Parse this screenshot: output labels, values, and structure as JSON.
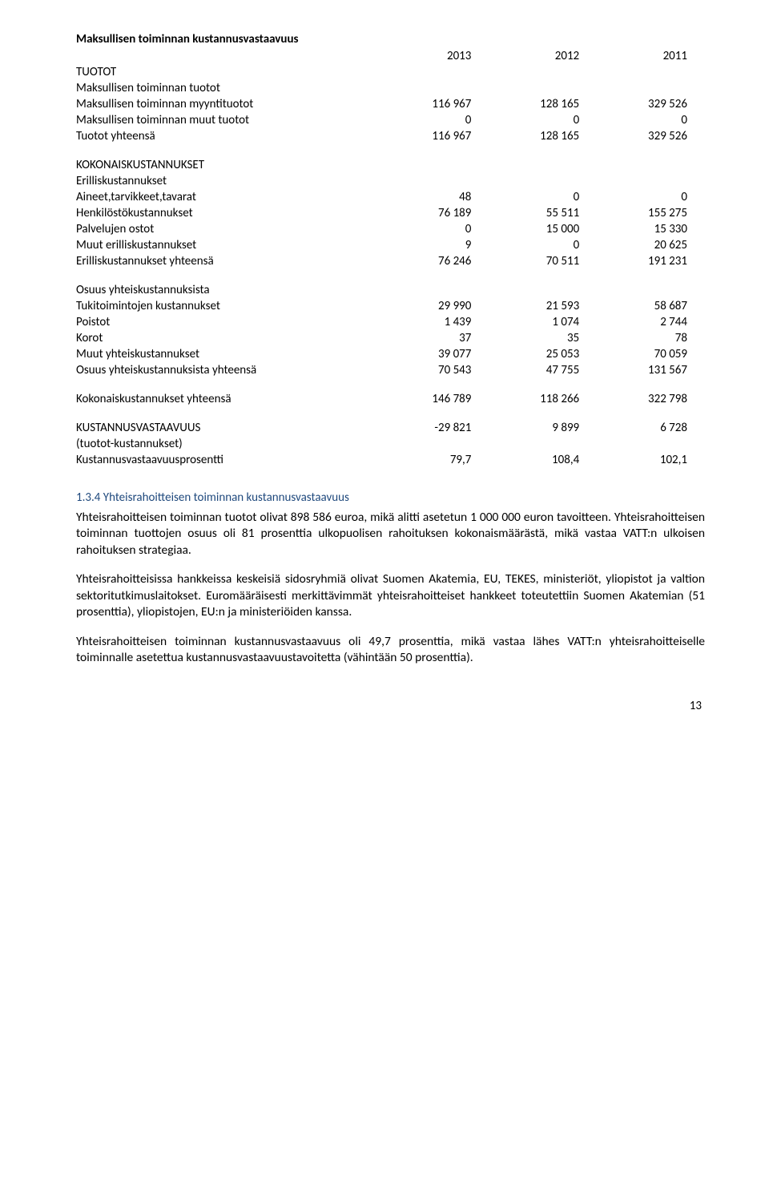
{
  "table": {
    "title": "Maksullisen toiminnan kustannusvastaavuus",
    "years": [
      "2013",
      "2012",
      "2011"
    ],
    "sections": [
      {
        "label": "TUOTOT",
        "rows": [
          {
            "label": "Maksullisen toiminnan tuotot",
            "vals": [
              "",
              "",
              ""
            ]
          },
          {
            "label": "Maksullisen toiminnan myyntituotot",
            "vals": [
              "116 967",
              "128 165",
              "329 526"
            ]
          },
          {
            "label": "Maksullisen toiminnan muut tuotot",
            "vals": [
              "0",
              "0",
              "0"
            ]
          },
          {
            "label": "Tuotot yhteensä",
            "vals": [
              "116 967",
              "128 165",
              "329 526"
            ]
          }
        ]
      },
      {
        "label": "KOKONAISKUSTANNUKSET",
        "rows": [
          {
            "label": "Erilliskustannukset",
            "vals": [
              "",
              "",
              ""
            ]
          },
          {
            "label": "Aineet,tarvikkeet,tavarat",
            "vals": [
              "48",
              "0",
              "0"
            ]
          },
          {
            "label": "Henkilöstökustannukset",
            "vals": [
              "76 189",
              "55 511",
              "155 275"
            ]
          },
          {
            "label": "Palvelujen ostot",
            "vals": [
              "0",
              "15 000",
              "15 330"
            ]
          },
          {
            "label": "Muut erilliskustannukset",
            "vals": [
              "9",
              "0",
              "20 625"
            ]
          },
          {
            "label": "Erilliskustannukset yhteensä",
            "vals": [
              "76 246",
              "70 511",
              "191 231"
            ]
          }
        ]
      },
      {
        "label": "Osuus yhteiskustannuksista",
        "rows": [
          {
            "label": "Tukitoimintojen kustannukset",
            "vals": [
              "29 990",
              "21 593",
              "58 687"
            ]
          },
          {
            "label": "Poistot",
            "vals": [
              "1 439",
              "1 074",
              "2 744"
            ]
          },
          {
            "label": "Korot",
            "vals": [
              "37",
              "35",
              "78"
            ]
          },
          {
            "label": "Muut yhteiskustannukset",
            "vals": [
              "39 077",
              "25 053",
              "70 059"
            ]
          },
          {
            "label": "Osuus yhteiskustannuksista yhteensä",
            "vals": [
              "70 543",
              "47 755",
              "131 567"
            ]
          }
        ]
      },
      {
        "label": "",
        "rows": [
          {
            "label": "Kokonaiskustannukset yhteensä",
            "vals": [
              "146 789",
              "118 266",
              "322 798"
            ]
          }
        ]
      },
      {
        "label": "",
        "rows": [
          {
            "label": "KUSTANNUSVASTAAVUUS",
            "vals": [
              "-29 821",
              "9 899",
              "6 728"
            ]
          },
          {
            "label": "(tuotot-kustannukset)",
            "vals": [
              "",
              "",
              ""
            ]
          },
          {
            "label": "Kustannusvastaavuusprosentti",
            "vals": [
              "79,7",
              "108,4",
              "102,1"
            ]
          }
        ]
      }
    ]
  },
  "heading": "1.3.4 Yhteisrahoitteisen toiminnan kustannusvastaavuus",
  "paragraphs": [
    "Yhteisrahoitteisen toiminnan tuotot olivat 898 586 euroa, mikä alitti asetetun 1 000 000 euron tavoitteen. Yhteisrahoitteisen toiminnan tuottojen osuus oli 81 prosenttia ulkopuolisen rahoituksen kokonaismäärästä, mikä vastaa VATT:n ulkoisen rahoituksen strategiaa.",
    "Yhteisrahoitteisissa hankkeissa keskeisiä sidosryhmiä olivat Suomen Akatemia, EU, TEKES, ministeriöt, yliopistot ja valtion sektoritutkimuslaitokset. Euromääräisesti merkittävimmät yhteisrahoitteiset hankkeet toteutettiin Suomen Akatemian (51 prosenttia), yliopistojen, EU:n ja ministeriöiden kanssa.",
    "Yhteisrahoitteisen toiminnan kustannusvastaavuus oli 49,7 prosenttia, mikä vastaa lähes VATT:n yhteisrahoitteiselle toiminnalle asetettua kustannusvastaavuustavoitetta (vähintään 50 prosenttia)."
  ],
  "page_number": "13"
}
